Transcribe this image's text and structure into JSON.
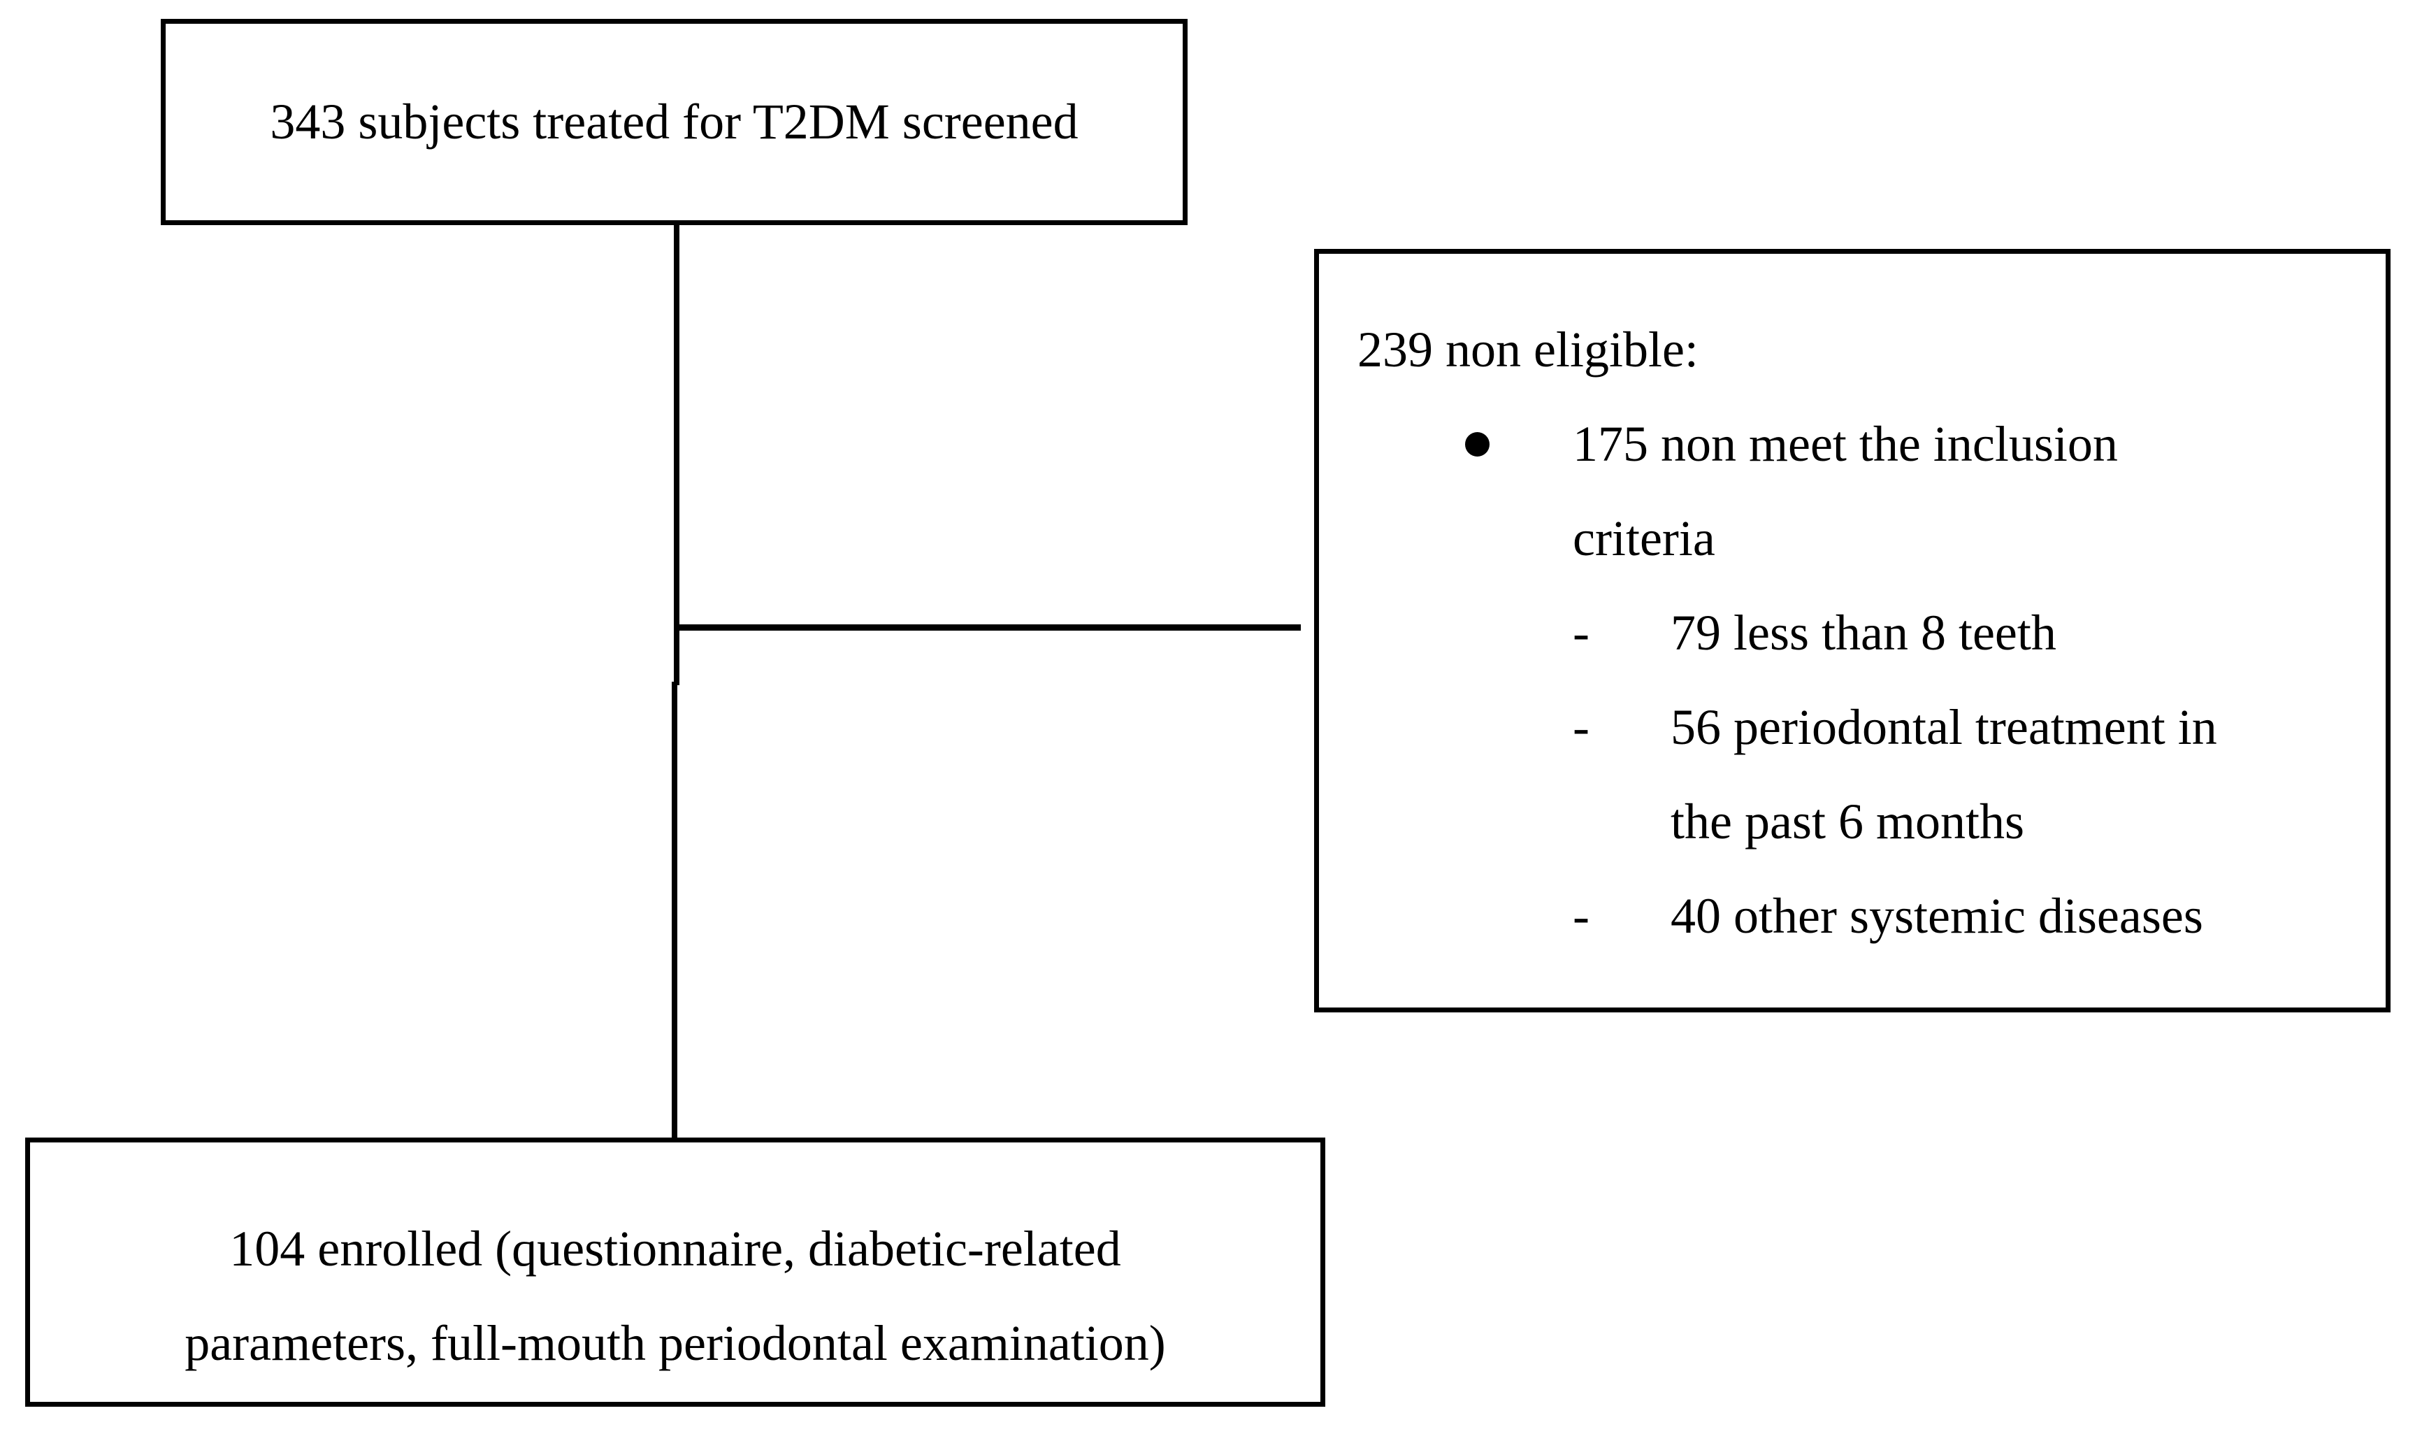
{
  "colors": {
    "background": "#ffffff",
    "border": "#000000",
    "text": "#000000"
  },
  "boxes": {
    "screened": {
      "text": "343 subjects treated for T2DM screened"
    },
    "non_eligible": {
      "title": "239 non eligible:",
      "bullet_item": {
        "marker": "•",
        "lines": [
          "175 non meet the inclusion",
          "criteria"
        ]
      },
      "dash_items": [
        {
          "marker": "-",
          "lines": [
            "79 less than 8 teeth"
          ]
        },
        {
          "marker": "-",
          "lines": [
            "56 periodontal treatment in",
            "the past 6 months"
          ]
        },
        {
          "marker": "-",
          "lines": [
            "40 other systemic diseases"
          ]
        }
      ]
    },
    "enrolled": {
      "lines": [
        "104 enrolled (questionnaire, diabetic-related",
        "parameters, full-mouth periodontal examination)"
      ]
    }
  }
}
